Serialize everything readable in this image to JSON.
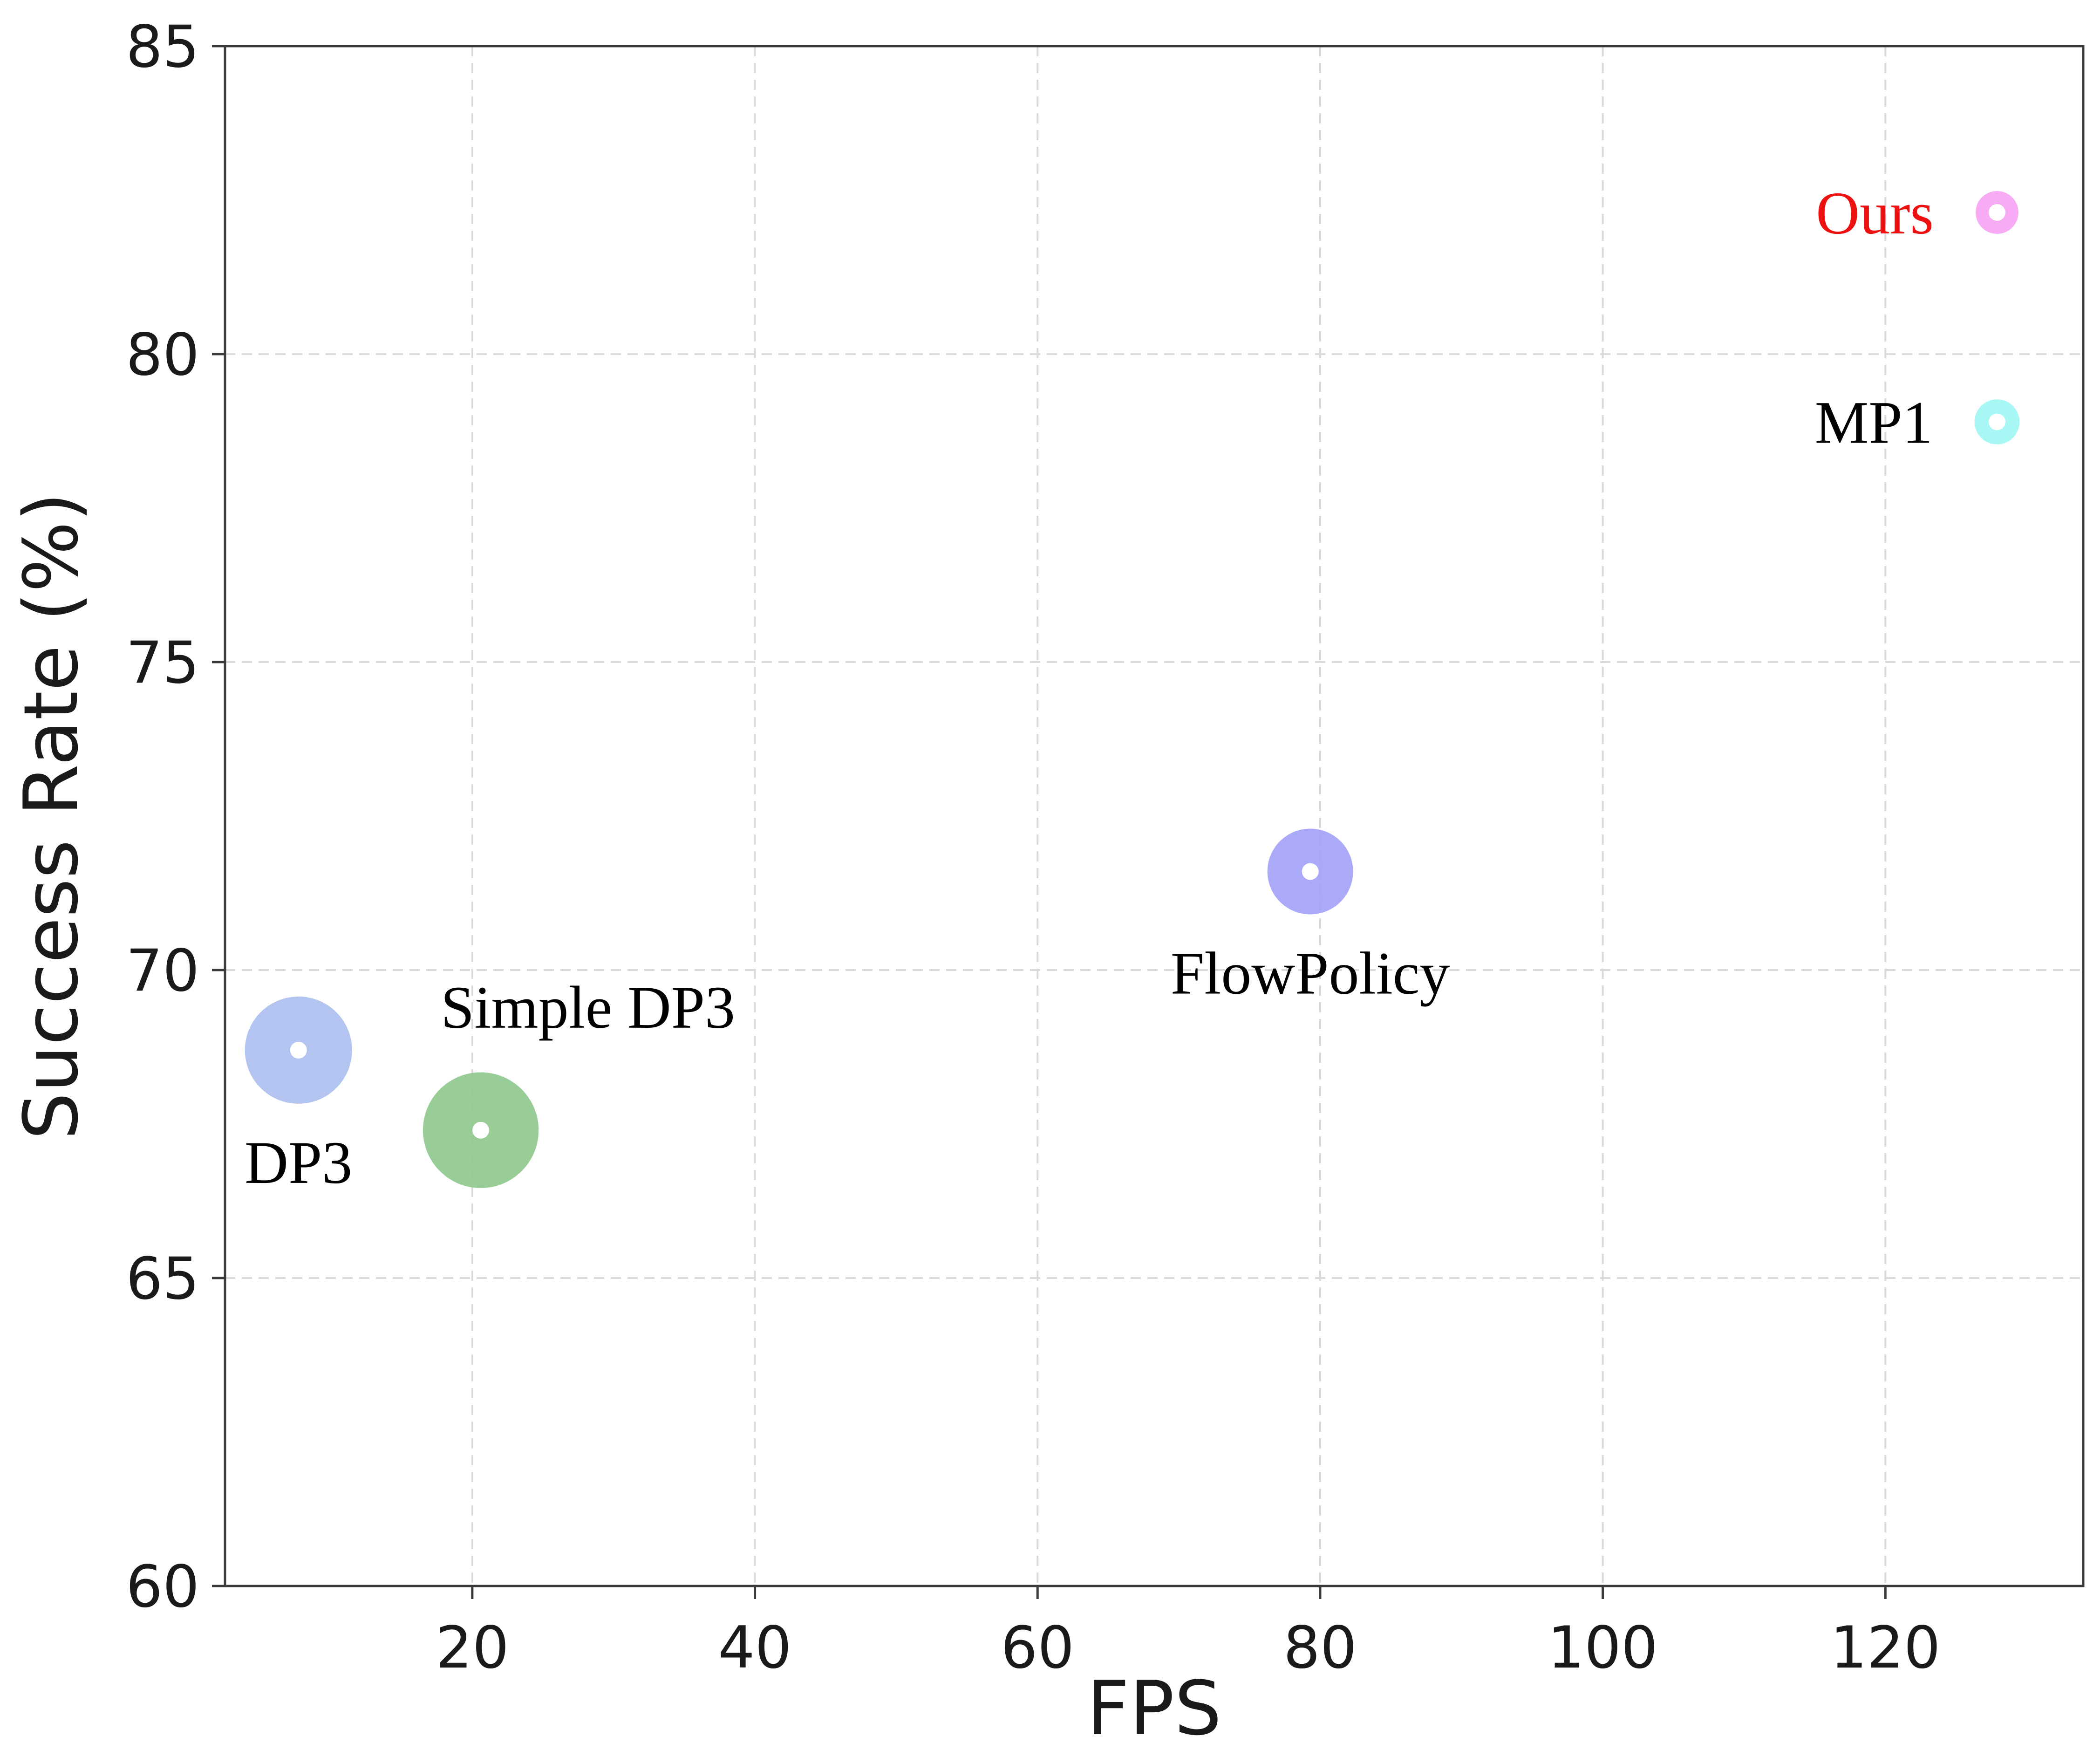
{
  "chart_data": {
    "type": "scatter",
    "title": "",
    "xlabel": "FPS",
    "ylabel": "Success Rate (%)",
    "xlim": [
      2.5,
      134
    ],
    "ylim": [
      60,
      85
    ],
    "xticks": [
      20,
      40,
      60,
      80,
      100,
      120
    ],
    "yticks": [
      60,
      65,
      70,
      75,
      80,
      85
    ],
    "grid": true,
    "points": [
      {
        "name": "DP3",
        "x": 7.7,
        "y": 68.7,
        "size": 1.0,
        "color": "#aebff0",
        "label_color": "#000000",
        "label_pos": "below"
      },
      {
        "name": "Simple DP3",
        "x": 20.6,
        "y": 67.4,
        "size": 1.08,
        "color": "#90c98f",
        "label_color": "#000000",
        "label_pos": "upper-right"
      },
      {
        "name": "FlowPolicy",
        "x": 79.3,
        "y": 71.6,
        "size": 0.8,
        "color": "#a3a3f7",
        "label_color": "#000000",
        "label_pos": "below"
      },
      {
        "name": "MP1",
        "x": 127.9,
        "y": 78.9,
        "size": 0.42,
        "color": "#9ff7f4",
        "label_color": "#000000",
        "label_pos": "left"
      },
      {
        "name": "Ours",
        "x": 127.9,
        "y": 82.3,
        "size": 0.4,
        "color": "#f7a4f4",
        "label_color": "#ee1111",
        "label_pos": "left"
      }
    ]
  }
}
